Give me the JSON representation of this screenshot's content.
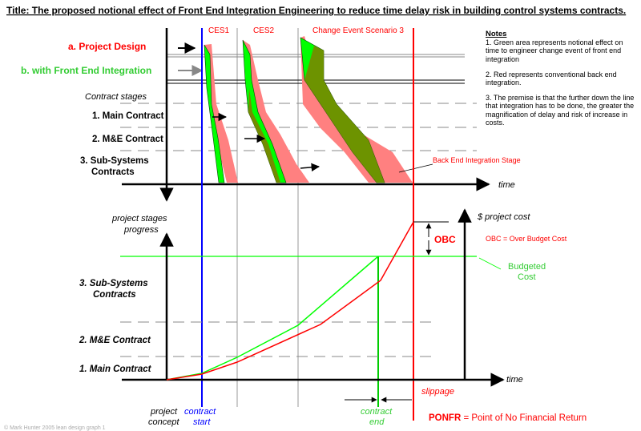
{
  "title": "Title: The proposed notional effect of Front End Integration Engineering to reduce time delay risk in building control systems contracts.",
  "top": {
    "row_a": "a. Project Design",
    "row_b": "b. with Front End  Integration",
    "contract_stages": "Contract stages",
    "stage1": "1. Main Contract",
    "stage2": "2. M&E Contract",
    "stage3_l1": "3. Sub-Systems",
    "stage3_l2": "Contracts",
    "ces1": "CES1",
    "ces2": "CES2",
    "ces3": "Change Event Scenario 3",
    "back_end": "Back End  Integration Stage",
    "time": "time"
  },
  "notes": {
    "heading": "Notes",
    "n1": "1. Green area represents notional effect on time to engineer change event of front end integration",
    "n2": "2. Red represents conventional back end integration.",
    "n3": "3. The premise is that the further down the line that integration has to be done, the greater the magnification of delay and risk of increase in costs."
  },
  "bottom": {
    "ylabel_l1": "project stages",
    "ylabel_l2": "progress",
    "stage3_l1": "3. Sub-Systems",
    "stage3_l2": "Contracts",
    "stage2": "2. M&E Contract",
    "stage1": "1. Main Contract",
    "time": "time",
    "project_cost": "$ project cost",
    "obc": "OBC",
    "obc_def": "OBC = Over Budget Cost",
    "budgeted_l1": "Budgeted",
    "budgeted_l2": "Cost",
    "slippage": "slippage",
    "project_concept_l1": "project",
    "project_concept_l2": "concept",
    "contract_start_l1": "contract",
    "contract_start_l2": "start",
    "contract_end_l1": "contract",
    "contract_end_l2": "end",
    "ponfr_abbr": "PONFR",
    "ponfr_text": " = Point of No Financial Return",
    "copyright": "© Mark Hunter 2005 lean design graph 1"
  },
  "colors": {
    "red": "#ff0000",
    "green": "#00ff00",
    "blue": "#0000ff",
    "salmon": "#ff8080",
    "olive": "#808000",
    "label_red": "#ff0000",
    "label_green": "#33cc33"
  }
}
